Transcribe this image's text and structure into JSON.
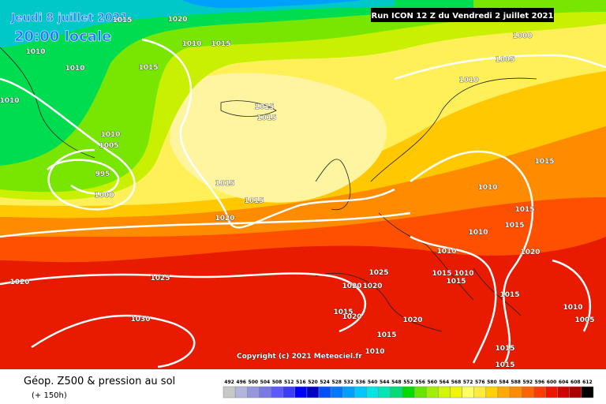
{
  "header": {
    "date": "Jeudi 8 juillet 2021",
    "time": "20:00 locale",
    "run": "Run ICON 12 Z du Vendredi 2 juillet 2021"
  },
  "copyright": "Copyright (c) 2021 Meteociel.fr",
  "footer": {
    "title": "Géop. Z500 & pression au sol",
    "subtitle": "(+ 150h)"
  },
  "legend": {
    "values": [
      492,
      496,
      500,
      504,
      508,
      512,
      516,
      520,
      524,
      528,
      532,
      536,
      540,
      544,
      548,
      552,
      556,
      560,
      564,
      568,
      572,
      576,
      580,
      584,
      588,
      592,
      596,
      600,
      604,
      608,
      612
    ],
    "colors": [
      "#c8c8c8",
      "#b4b4dc",
      "#9696dc",
      "#7878e6",
      "#5a5aff",
      "#3c3cff",
      "#0000ff",
      "#0000c8",
      "#0050ff",
      "#0078ff",
      "#00a0ff",
      "#00c8ff",
      "#00e6e6",
      "#00e6b4",
      "#00dc78",
      "#00dc00",
      "#64e600",
      "#a0f000",
      "#d2f500",
      "#f0f500",
      "#ffff64",
      "#ffeb3c",
      "#ffd200",
      "#ffaa00",
      "#ff8c00",
      "#ff6400",
      "#ff3c00",
      "#f01400",
      "#d20000",
      "#aa0000",
      "#000000"
    ]
  },
  "isobars": {
    "labels": [
      1015,
      1020,
      1010,
      1015,
      1010,
      1010,
      1015,
      1010,
      1000,
      1005,
      1010,
      1015,
      1015,
      1010,
      1005,
      995,
      1000,
      1015,
      1015,
      1020,
      1015,
      1010,
      1015,
      1010,
      1015,
      1020,
      1010,
      1025,
      1015,
      1010,
      1015,
      1020,
      1020,
      1025,
      1020,
      1030,
      1015,
      1020,
      1020,
      1015,
      1015,
      1015,
      1015,
      1010,
      1005,
      1010
    ]
  }
}
